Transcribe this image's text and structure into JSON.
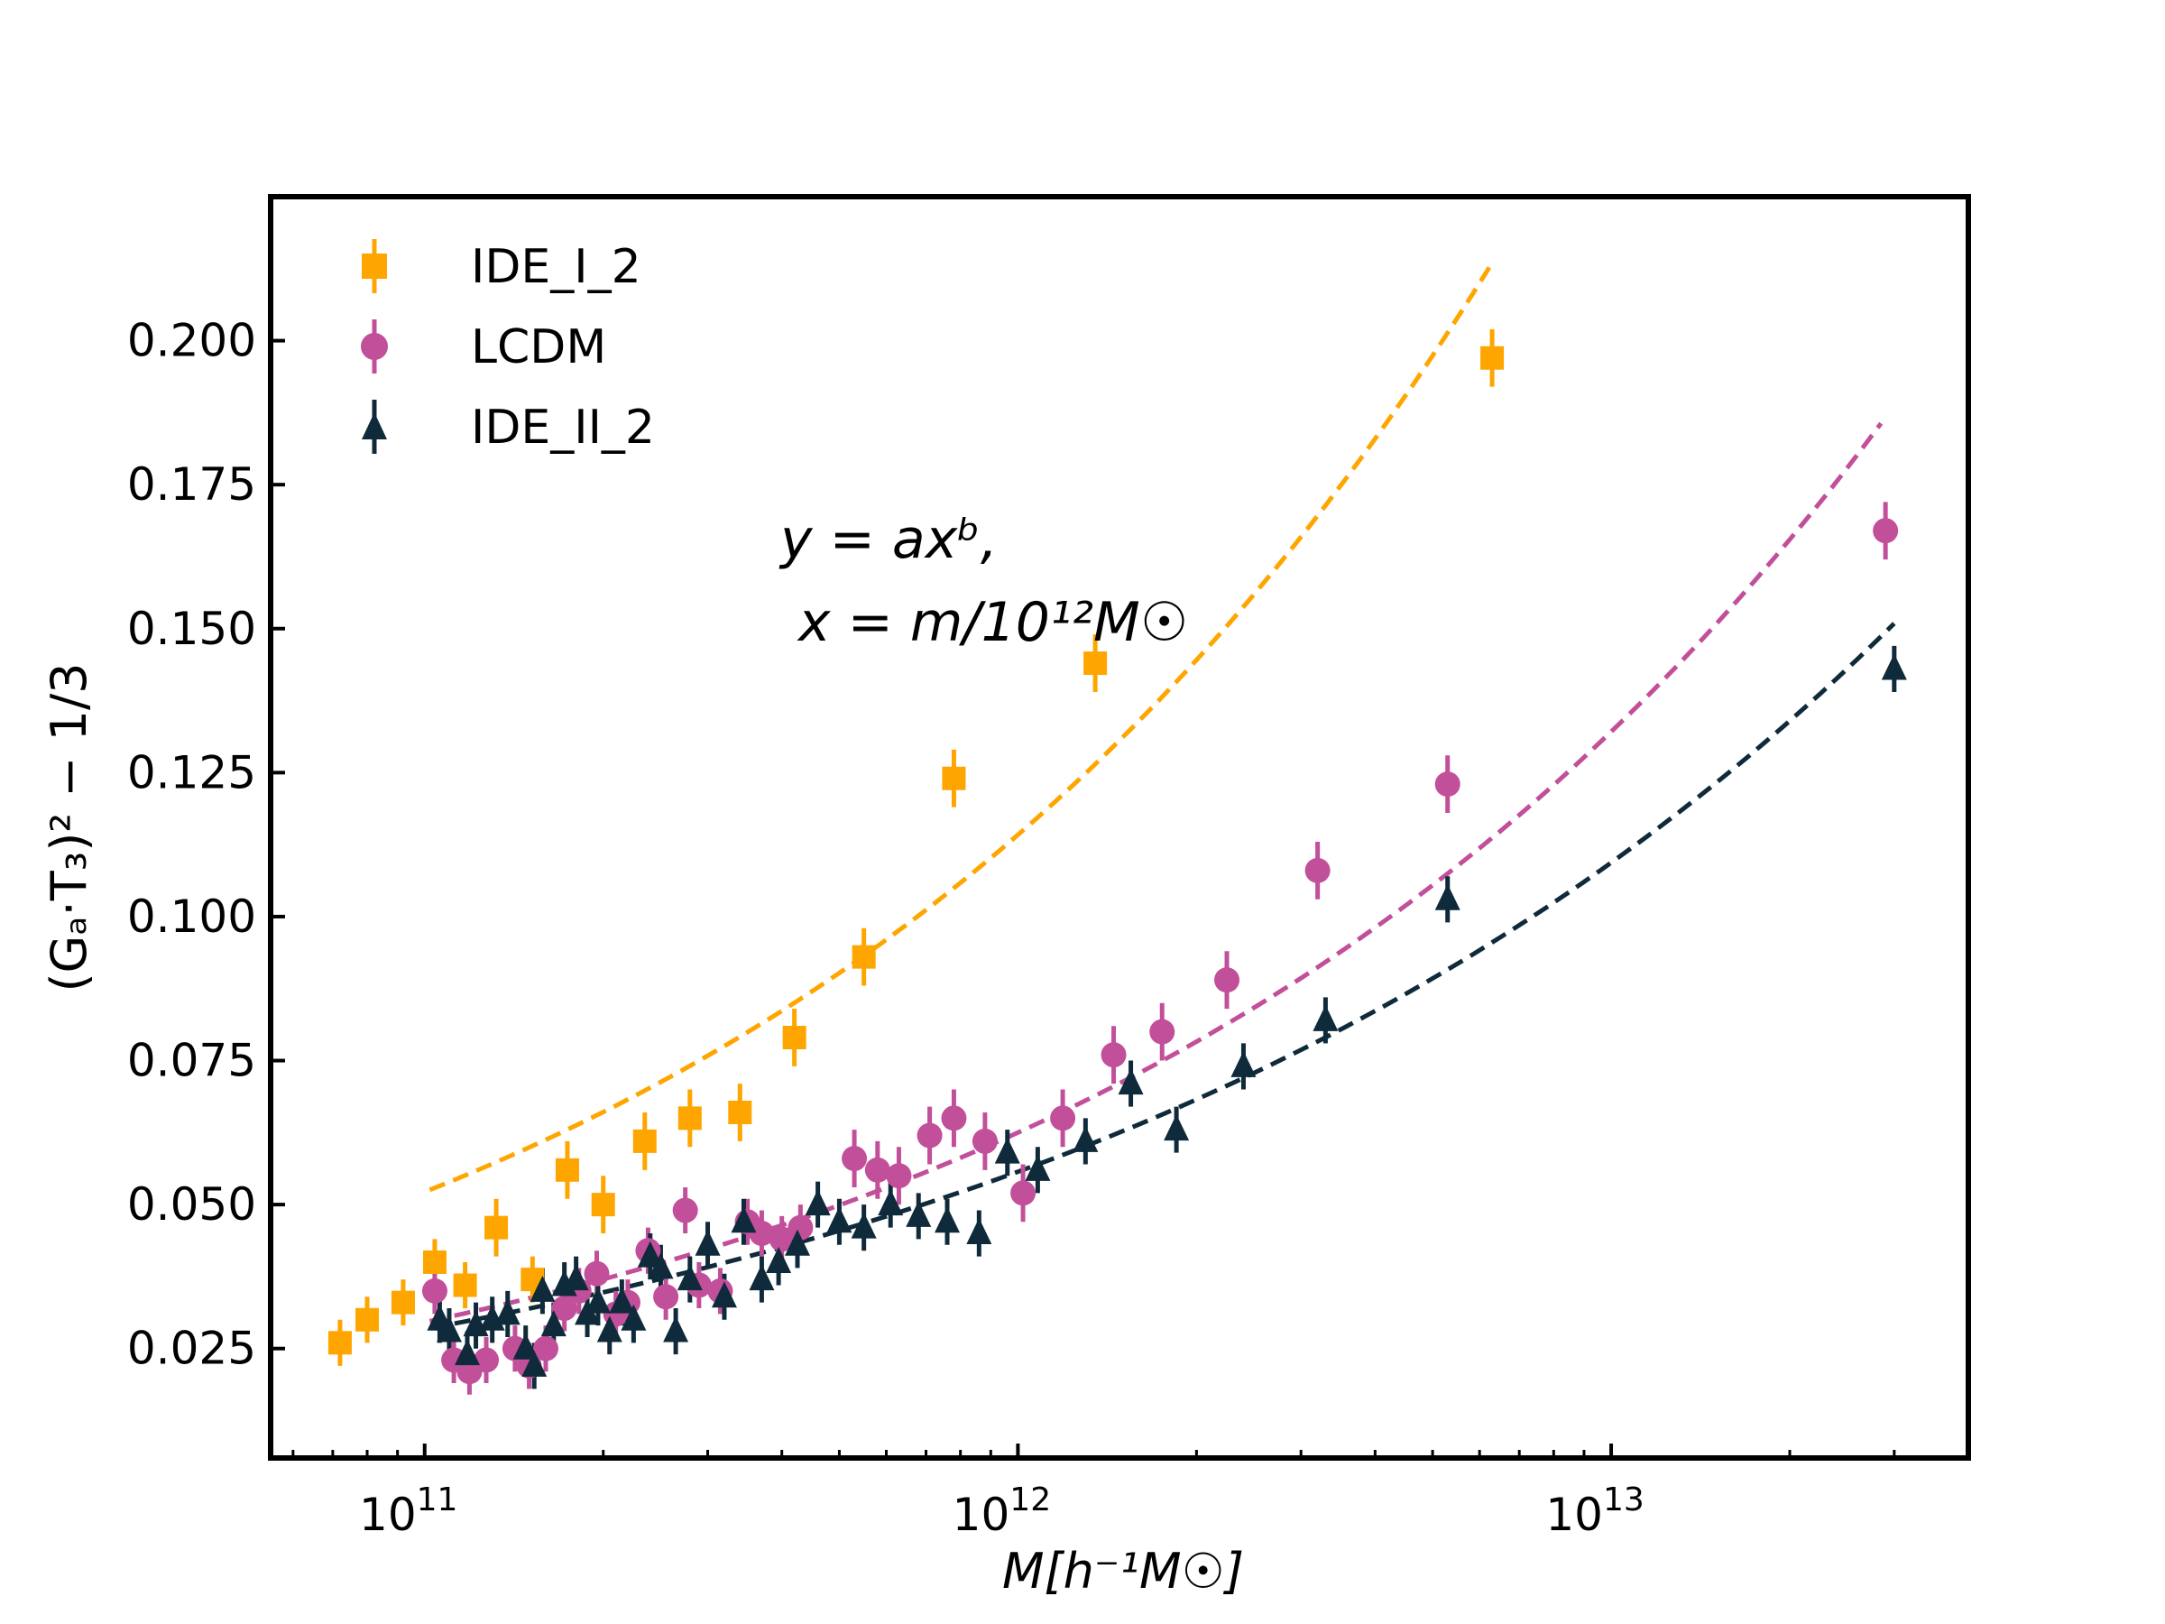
{
  "chart_data": {
    "type": "scatter",
    "title": "",
    "xlabel": "M[h⁻¹M☉]",
    "ylabel": "(Gₐ·T₃)² − 1/3",
    "xscale": "log",
    "xlim": [
      55000000000,
      40000000000000
    ],
    "ylim": [
      0.006,
      0.225
    ],
    "grid": false,
    "legend_position": "top-left",
    "yticks": [
      0.025,
      0.05,
      0.075,
      0.1,
      0.125,
      0.15,
      0.175,
      0.2
    ],
    "ytick_labels": [
      "0.025",
      "0.050",
      "0.075",
      "0.100",
      "0.125",
      "0.150",
      "0.175",
      "0.200"
    ],
    "xticks": [
      100000000000,
      1000000000000,
      10000000000000
    ],
    "xtick_labels": [
      {
        "base": "10",
        "exp": "11"
      },
      {
        "base": "10",
        "exp": "12"
      },
      {
        "base": "10",
        "exp": "13"
      }
    ],
    "annotation": {
      "line1": "y = axᵇ,",
      "line2": "x = m/10¹²M☉"
    },
    "series": [
      {
        "name": "IDE_I_2",
        "color": "#ffa500",
        "marker": "square",
        "points": [
          [
            72000000000.0,
            0.026,
            0.004
          ],
          [
            80000000000.0,
            0.03,
            0.004
          ],
          [
            92000000000.0,
            0.033,
            0.004
          ],
          [
            104000000000.0,
            0.04,
            0.004
          ],
          [
            117000000000.0,
            0.036,
            0.004
          ],
          [
            132000000000.0,
            0.046,
            0.005
          ],
          [
            152000000000.0,
            0.037,
            0.004
          ],
          [
            174000000000.0,
            0.056,
            0.005
          ],
          [
            200000000000.0,
            0.05,
            0.005
          ],
          [
            235000000000.0,
            0.061,
            0.005
          ],
          [
            280000000000.0,
            0.065,
            0.005
          ],
          [
            340000000000.0,
            0.066,
            0.005
          ],
          [
            420000000000.0,
            0.079,
            0.005
          ],
          [
            550000000000.0,
            0.093,
            0.005
          ],
          [
            780000000000.0,
            0.124,
            0.005
          ],
          [
            1350000000000.0,
            0.144,
            0.005
          ],
          [
            6300000000000.0,
            0.197,
            0.005
          ]
        ],
        "fit": {
          "x_range": [
            102000000000.0,
            6300000000000.0
          ],
          "a": 0.1142,
          "b": 0.34
        }
      },
      {
        "name": "LCDM",
        "color": "#c24f9a",
        "marker": "circle",
        "points": [
          [
            104000000000.0,
            0.035,
            0.004
          ],
          [
            112000000000.0,
            0.023,
            0.004
          ],
          [
            119000000000.0,
            0.021,
            0.004
          ],
          [
            127000000000.0,
            0.023,
            0.004
          ],
          [
            142000000000.0,
            0.025,
            0.004
          ],
          [
            150000000000.0,
            0.022,
            0.004
          ],
          [
            160000000000.0,
            0.025,
            0.004
          ],
          [
            172000000000.0,
            0.032,
            0.004
          ],
          [
            182000000000.0,
            0.035,
            0.004
          ],
          [
            195000000000.0,
            0.038,
            0.004
          ],
          [
            210000000000.0,
            0.031,
            0.004
          ],
          [
            220000000000.0,
            0.033,
            0.004
          ],
          [
            238000000000.0,
            0.042,
            0.004
          ],
          [
            255000000000.0,
            0.034,
            0.004
          ],
          [
            275000000000.0,
            0.049,
            0.004
          ],
          [
            290000000000.0,
            0.036,
            0.004
          ],
          [
            315000000000.0,
            0.035,
            0.004
          ],
          [
            350000000000.0,
            0.047,
            0.004
          ],
          [
            370000000000.0,
            0.045,
            0.004
          ],
          [
            400000000000.0,
            0.044,
            0.004
          ],
          [
            430000000000.0,
            0.046,
            0.004
          ],
          [
            530000000000.0,
            0.058,
            0.005
          ],
          [
            580000000000.0,
            0.056,
            0.005
          ],
          [
            630000000000.0,
            0.055,
            0.005
          ],
          [
            710000000000.0,
            0.062,
            0.005
          ],
          [
            780000000000.0,
            0.065,
            0.005
          ],
          [
            880000000000.0,
            0.061,
            0.005
          ],
          [
            1020000000000.0,
            0.052,
            0.005
          ],
          [
            1190000000000.0,
            0.065,
            0.005
          ],
          [
            1450000000000.0,
            0.076,
            0.005
          ],
          [
            1750000000000.0,
            0.08,
            0.005
          ],
          [
            2250000000000.0,
            0.089,
            0.005
          ],
          [
            3200000000000.0,
            0.108,
            0.005
          ],
          [
            5300000000000.0,
            0.123,
            0.005
          ],
          [
            29000000000000.0,
            0.167,
            0.005
          ]
        ],
        "fit": {
          "x_range": [
            102000000000.0,
            28500000000000.0
          ],
          "a": 0.0625,
          "b": 0.325
        }
      },
      {
        "name": "IDE_II_2",
        "color": "#0f2a3a",
        "marker": "triangle",
        "points": [
          [
            106000000000.0,
            0.03,
            0.004
          ],
          [
            110000000000.0,
            0.028,
            0.004
          ],
          [
            118000000000.0,
            0.024,
            0.004
          ],
          [
            122000000000.0,
            0.029,
            0.004
          ],
          [
            130000000000.0,
            0.03,
            0.004
          ],
          [
            138000000000.0,
            0.031,
            0.004
          ],
          [
            148000000000.0,
            0.025,
            0.004
          ],
          [
            153000000000.0,
            0.022,
            0.004
          ],
          [
            158000000000.0,
            0.035,
            0.004
          ],
          [
            165000000000.0,
            0.029,
            0.004
          ],
          [
            172000000000.0,
            0.036,
            0.004
          ],
          [
            180000000000.0,
            0.037,
            0.004
          ],
          [
            188000000000.0,
            0.031,
            0.004
          ],
          [
            196000000000.0,
            0.033,
            0.004
          ],
          [
            205000000000.0,
            0.028,
            0.004
          ],
          [
            215000000000.0,
            0.033,
            0.004
          ],
          [
            225000000000.0,
            0.03,
            0.004
          ],
          [
            240000000000.0,
            0.041,
            0.004
          ],
          [
            250000000000.0,
            0.039,
            0.004
          ],
          [
            265000000000.0,
            0.028,
            0.004
          ],
          [
            280000000000.0,
            0.037,
            0.004
          ],
          [
            300000000000.0,
            0.043,
            0.004
          ],
          [
            320000000000.0,
            0.034,
            0.004
          ],
          [
            345000000000.0,
            0.047,
            0.004
          ],
          [
            370000000000.0,
            0.037,
            0.004
          ],
          [
            395000000000.0,
            0.04,
            0.004
          ],
          [
            425000000000.0,
            0.043,
            0.004
          ],
          [
            460000000000.0,
            0.05,
            0.004
          ],
          [
            500000000000.0,
            0.047,
            0.004
          ],
          [
            550000000000.0,
            0.046,
            0.004
          ],
          [
            610000000000.0,
            0.05,
            0.004
          ],
          [
            680000000000.0,
            0.048,
            0.004
          ],
          [
            760000000000.0,
            0.047,
            0.004
          ],
          [
            860000000000.0,
            0.045,
            0.004
          ],
          [
            960000000000.0,
            0.059,
            0.004
          ],
          [
            1080000000000.0,
            0.056,
            0.004
          ],
          [
            1300000000000.0,
            0.061,
            0.004
          ],
          [
            1550000000000.0,
            0.071,
            0.004
          ],
          [
            1850000000000.0,
            0.063,
            0.004
          ],
          [
            2400000000000.0,
            0.074,
            0.004
          ],
          [
            3300000000000.0,
            0.082,
            0.004
          ],
          [
            5300000000000.0,
            0.103,
            0.004
          ],
          [
            30000000000000.0,
            0.143,
            0.004
          ]
        ],
        "fit": {
          "x_range": [
            102000000000.0,
            30000000000000.0
          ],
          "a": 0.0557,
          "b": 0.293
        }
      }
    ]
  }
}
